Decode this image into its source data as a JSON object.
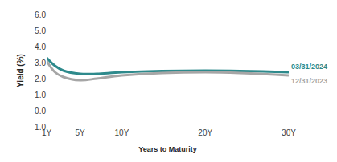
{
  "chart_data": {
    "type": "line",
    "x_label": "Years to Maturity",
    "y_label": "Yield (%)",
    "x": [
      1,
      2,
      3,
      5,
      7,
      10,
      20,
      30
    ],
    "series": [
      {
        "name": "03/31/2024",
        "color": "#2e8a8c",
        "values": [
          3.3,
          2.8,
          2.5,
          2.3,
          2.3,
          2.4,
          2.5,
          2.4
        ]
      },
      {
        "name": "12/31/2023",
        "color": "#a6a6a6",
        "values": [
          3.1,
          2.4,
          2.1,
          1.9,
          2.0,
          2.2,
          2.4,
          2.2
        ]
      }
    ],
    "xlim": [
      1,
      30
    ],
    "xticks": [
      {
        "value": 1,
        "label": "1Y"
      },
      {
        "value": 5,
        "label": "5Y"
      },
      {
        "value": 10,
        "label": "10Y"
      },
      {
        "value": 20,
        "label": "20Y"
      },
      {
        "value": 30,
        "label": "30Y"
      }
    ],
    "ylim": [
      -1,
      6
    ],
    "yticks": [
      {
        "value": -1,
        "label": "-1.0"
      },
      {
        "value": 0,
        "label": "0.0"
      },
      {
        "value": 1,
        "label": "1.0"
      },
      {
        "value": 2,
        "label": "2.0"
      },
      {
        "value": 3,
        "label": "3.0"
      },
      {
        "value": 4,
        "label": "4.0"
      },
      {
        "value": 5,
        "label": "5.0"
      },
      {
        "value": 6,
        "label": "6.0"
      }
    ],
    "grid": false
  }
}
